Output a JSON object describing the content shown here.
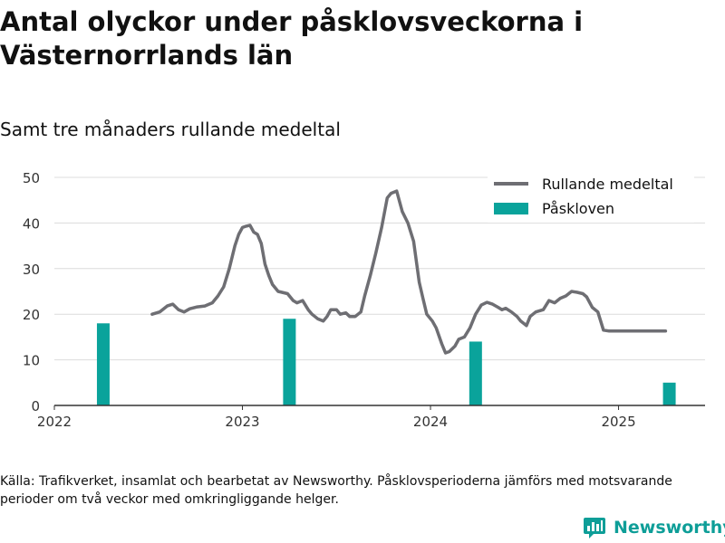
{
  "title": "Antal olyckor under påsklovsveckorna i Västernorrlands län",
  "subtitle": "Samt tre månaders rullande medeltal",
  "source": "Källa: Trafikverket, insamlat och bearbetat av Newsworthy. Påsklovsperioderna jämförs med motsvarande perioder om två veckor med omkringliggande helger.",
  "brand": {
    "name": "Newsworthy"
  },
  "colors": {
    "line": "#6e6e73",
    "bar": "#0aa39b",
    "grid": "#dcdcdc",
    "axis": "#333333",
    "brand": "#0e9e98"
  },
  "chart_data": {
    "type": "bar",
    "xlabel": "",
    "ylabel": "",
    "xlim": [
      2022.0,
      2025.46
    ],
    "ylim": [
      0,
      50
    ],
    "yticks": [
      0,
      10,
      20,
      30,
      40,
      50
    ],
    "xticks": [
      2022,
      2023,
      2024,
      2025
    ],
    "grid": true,
    "legend_position": "top-right",
    "legend": [
      "Rullande medeltal",
      "Påskloven"
    ],
    "series": [
      {
        "name": "Påskloven",
        "type": "bar",
        "x": [
          2022.26,
          2023.25,
          2024.24,
          2025.27
        ],
        "values": [
          18,
          19,
          14,
          5
        ]
      },
      {
        "name": "Rullande medeltal",
        "type": "line",
        "x": [
          2022.52,
          2022.56,
          2022.6,
          2022.63,
          2022.66,
          2022.69,
          2022.72,
          2022.76,
          2022.8,
          2022.84,
          2022.87,
          2022.9,
          2022.93,
          2022.96,
          2022.98,
          2023.0,
          2023.02,
          2023.04,
          2023.06,
          2023.08,
          2023.1,
          2023.12,
          2023.14,
          2023.16,
          2023.19,
          2023.21,
          2023.24,
          2023.27,
          2023.29,
          2023.32,
          2023.35,
          2023.37,
          2023.4,
          2023.43,
          2023.45,
          2023.47,
          2023.5,
          2023.52,
          2023.55,
          2023.57,
          2023.6,
          2023.63,
          2023.65,
          2023.68,
          2023.71,
          2023.74,
          2023.77,
          2023.79,
          2023.82,
          2023.85,
          2023.88,
          2023.91,
          2023.94,
          2023.96,
          2023.98,
          2024.01,
          2024.03,
          2024.06,
          2024.08,
          2024.1,
          2024.13,
          2024.15,
          2024.18,
          2024.21,
          2024.24,
          2024.27,
          2024.3,
          2024.33,
          2024.36,
          2024.38,
          2024.4,
          2024.43,
          2024.46,
          2024.48,
          2024.51,
          2024.53,
          2024.56,
          2024.6,
          2024.63,
          2024.66,
          2024.69,
          2024.72,
          2024.75,
          2024.78,
          2024.81,
          2024.83,
          2024.86,
          2024.89,
          2024.92,
          2024.95,
          2024.97,
          2025.0,
          2025.02,
          2025.05,
          2025.08,
          2025.11,
          2025.14,
          2025.17,
          2025.2,
          2025.22,
          2025.25
        ],
        "values": [
          20,
          20.5,
          21.8,
          22.2,
          21,
          20.5,
          21.2,
          21.6,
          21.8,
          22.5,
          24,
          26,
          30,
          35,
          37.5,
          39,
          39.3,
          39.5,
          38,
          37.5,
          35.5,
          31,
          28.5,
          26.5,
          25,
          24.8,
          24.5,
          23,
          22.5,
          23,
          21,
          20,
          19,
          18.5,
          19.5,
          21,
          21,
          20,
          20.3,
          19.5,
          19.5,
          20.5,
          24,
          28.5,
          33.5,
          39,
          45.5,
          46.5,
          47,
          42.5,
          40,
          36,
          27,
          23.5,
          20,
          18.5,
          17,
          13.5,
          11.5,
          11.8,
          13,
          14.5,
          15,
          17,
          20,
          22,
          22.6,
          22.2,
          21.5,
          21,
          21.3,
          20.5,
          19.5,
          18.5,
          17.5,
          19.5,
          20.5,
          21,
          23,
          22.5,
          23.5,
          24,
          25,
          24.8,
          24.5,
          23.8,
          21.5,
          20.5,
          16.5,
          16.3,
          16.3,
          16.3,
          16.3,
          16.3,
          16.3,
          16.3,
          16.3,
          16.3,
          16.3,
          16.3,
          16.3
        ]
      }
    ]
  }
}
